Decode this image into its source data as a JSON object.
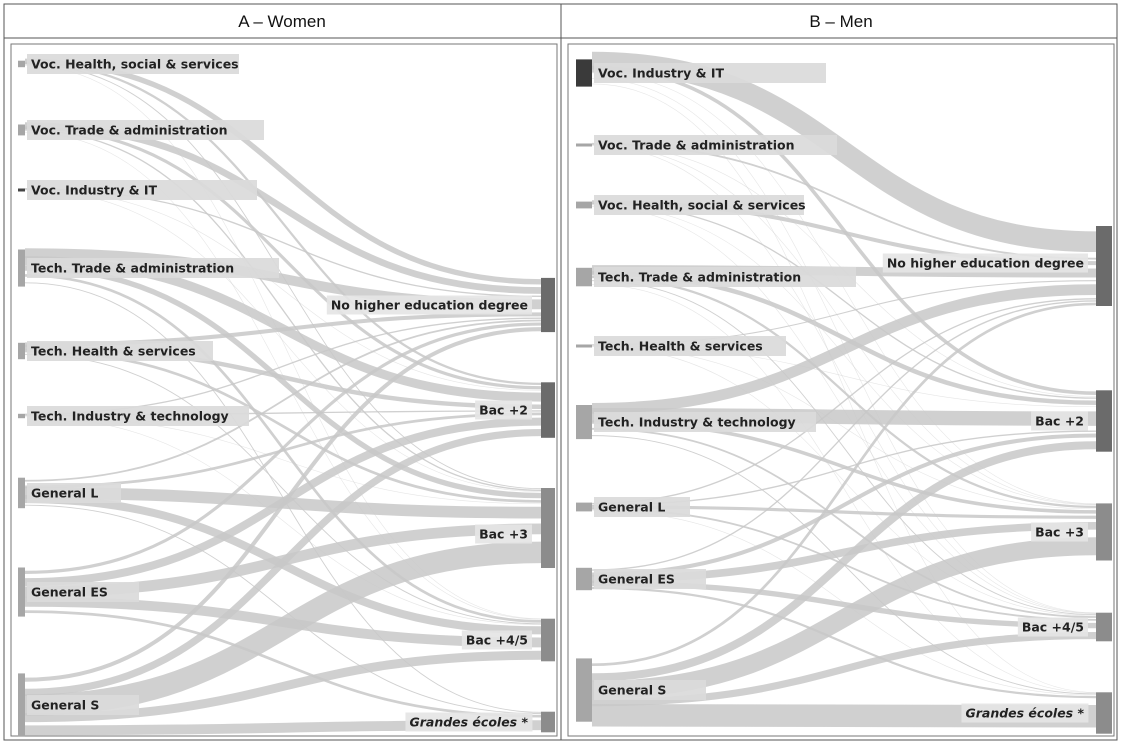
{
  "panels": [
    {
      "id": "women",
      "title": "A – Women",
      "sources": [
        {
          "label": "Voc. Health, social & services",
          "weight": 0.6
        },
        {
          "label": "Voc. Trade & administration",
          "weight": 1.0
        },
        {
          "label": "Voc. Industry & IT",
          "weight": 0.2
        },
        {
          "label": "Tech. Trade & administration",
          "weight": 3.4
        },
        {
          "label": "Tech. Health & services",
          "weight": 1.5
        },
        {
          "label": "Tech. Industry & technology",
          "weight": 0.4
        },
        {
          "label": "General L",
          "weight": 2.8
        },
        {
          "label": "General ES",
          "weight": 4.5
        },
        {
          "label": "General S",
          "weight": 5.8
        }
      ],
      "targets": [
        {
          "label": "No higher education degree",
          "weight": 4.2,
          "italic": false
        },
        {
          "label": "Bac +2",
          "weight": 4.3,
          "italic": false
        },
        {
          "label": "Bac +3",
          "weight": 6.2,
          "italic": false
        },
        {
          "label": "Bac +4/5",
          "weight": 3.3,
          "italic": false
        },
        {
          "label": "Grandes écoles *",
          "weight": 1.6,
          "italic": true
        }
      ],
      "flows": [
        [
          0.6,
          0.25,
          0.1,
          0.02,
          0.0
        ],
        [
          0.75,
          0.35,
          0.15,
          0.05,
          0.0
        ],
        [
          0.15,
          0.05,
          0.03,
          0.0,
          0.0
        ],
        [
          1.1,
          1.0,
          0.6,
          0.3,
          0.1
        ],
        [
          0.45,
          0.5,
          0.3,
          0.1,
          0.0
        ],
        [
          0.15,
          0.15,
          0.06,
          0.04,
          0.0
        ],
        [
          0.2,
          0.3,
          1.3,
          0.9,
          0.1
        ],
        [
          0.35,
          0.9,
          1.2,
          1.1,
          0.3
        ],
        [
          0.45,
          0.8,
          2.4,
          1.0,
          1.1
        ]
      ]
    },
    {
      "id": "men",
      "title": "B – Men",
      "sources": [
        {
          "label": "Voc. Industry & IT",
          "weight": 2.8
        },
        {
          "label": "Voc. Trade & administration",
          "weight": 0.3
        },
        {
          "label": "Voc. Health, social & services",
          "weight": 0.7
        },
        {
          "label": "Tech. Trade & administration",
          "weight": 1.9
        },
        {
          "label": "Tech. Health & services",
          "weight": 0.2
        },
        {
          "label": "Tech. Industry & technology",
          "weight": 3.5
        },
        {
          "label": "General L",
          "weight": 0.9
        },
        {
          "label": "General ES",
          "weight": 2.3
        },
        {
          "label": "General S",
          "weight": 6.5
        }
      ],
      "targets": [
        {
          "label": "No higher education degree",
          "weight": 5.6,
          "italic": false
        },
        {
          "label": "Bac +2",
          "weight": 4.3,
          "italic": false
        },
        {
          "label": "Bac +3",
          "weight": 4.0,
          "italic": false
        },
        {
          "label": "Bac +4/5",
          "weight": 2.0,
          "italic": false
        },
        {
          "label": "Grandes écoles *",
          "weight": 2.9,
          "italic": true
        }
      ],
      "flows": [
        [
          2.3,
          0.4,
          0.05,
          0.03,
          0.02
        ],
        [
          0.2,
          0.07,
          0.02,
          0.01,
          0.0
        ],
        [
          0.45,
          0.15,
          0.05,
          0.05,
          0.0
        ],
        [
          1.0,
          0.5,
          0.25,
          0.1,
          0.05
        ],
        [
          0.12,
          0.05,
          0.02,
          0.01,
          0.0
        ],
        [
          1.2,
          1.6,
          0.4,
          0.2,
          0.1
        ],
        [
          0.15,
          0.15,
          0.35,
          0.2,
          0.05
        ],
        [
          0.15,
          0.45,
          0.85,
          0.6,
          0.25
        ],
        [
          0.3,
          0.9,
          2.0,
          0.8,
          2.5
        ]
      ]
    }
  ],
  "colors": {
    "flow": "#c8c8c8",
    "label_box": "#dadada",
    "node_source": "#a6a6a6",
    "node_target": "#6b6b6b",
    "border": "#555555"
  }
}
